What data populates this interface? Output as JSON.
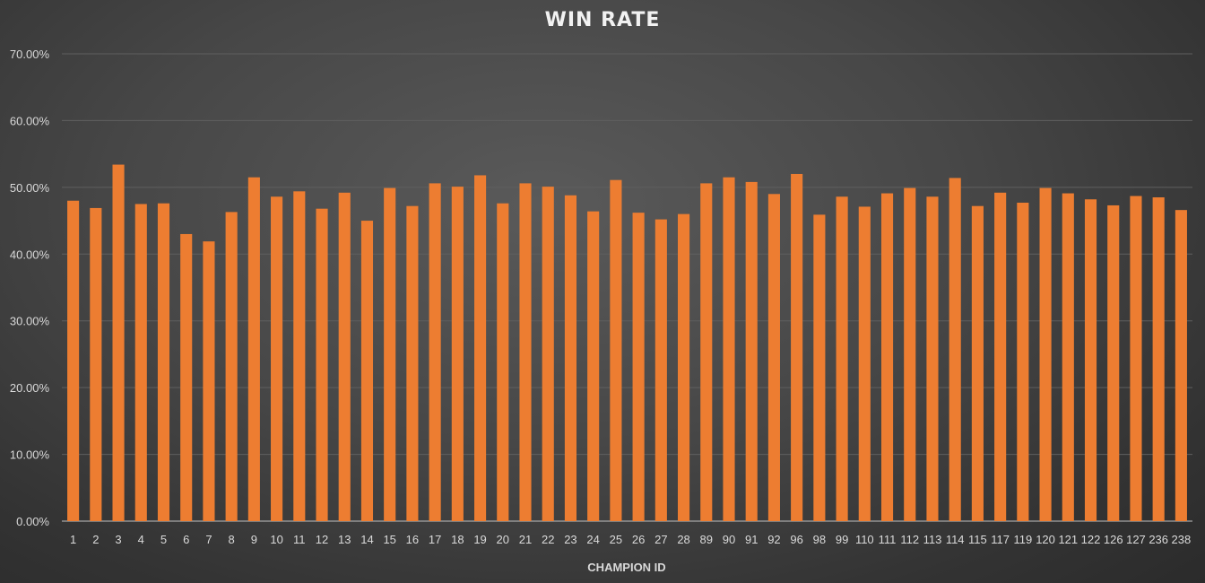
{
  "chart_data": {
    "type": "bar",
    "title": "WIN RATE",
    "xlabel": "CHAMPION ID",
    "ylabel": "",
    "ylim": [
      0,
      0.7
    ],
    "y_ticks": [
      "0.00%",
      "10.00%",
      "20.00%",
      "30.00%",
      "40.00%",
      "50.00%",
      "60.00%",
      "70.00%"
    ],
    "grid": true,
    "legend": "none",
    "bar_color": "#ed7d31",
    "categories": [
      "1",
      "2",
      "3",
      "4",
      "5",
      "6",
      "7",
      "8",
      "9",
      "10",
      "11",
      "12",
      "13",
      "14",
      "15",
      "16",
      "17",
      "18",
      "19",
      "20",
      "21",
      "22",
      "23",
      "24",
      "25",
      "26",
      "27",
      "28",
      "89",
      "90",
      "91",
      "92",
      "96",
      "98",
      "99",
      "110",
      "111",
      "112",
      "113",
      "114",
      "115",
      "117",
      "119",
      "120",
      "121",
      "122",
      "126",
      "127",
      "236",
      "238"
    ],
    "values": [
      0.48,
      0.469,
      0.534,
      0.475,
      0.476,
      0.43,
      0.419,
      0.463,
      0.515,
      0.486,
      0.494,
      0.468,
      0.492,
      0.45,
      0.499,
      0.472,
      0.506,
      0.501,
      0.518,
      0.476,
      0.506,
      0.501,
      0.488,
      0.464,
      0.511,
      0.462,
      0.452,
      0.46,
      0.506,
      0.515,
      0.508,
      0.49,
      0.52,
      0.459,
      0.486,
      0.471,
      0.491,
      0.499,
      0.486,
      0.514,
      0.472,
      0.492,
      0.477,
      0.499,
      0.491,
      0.482,
      0.473,
      0.487,
      0.485,
      0.466
    ]
  }
}
